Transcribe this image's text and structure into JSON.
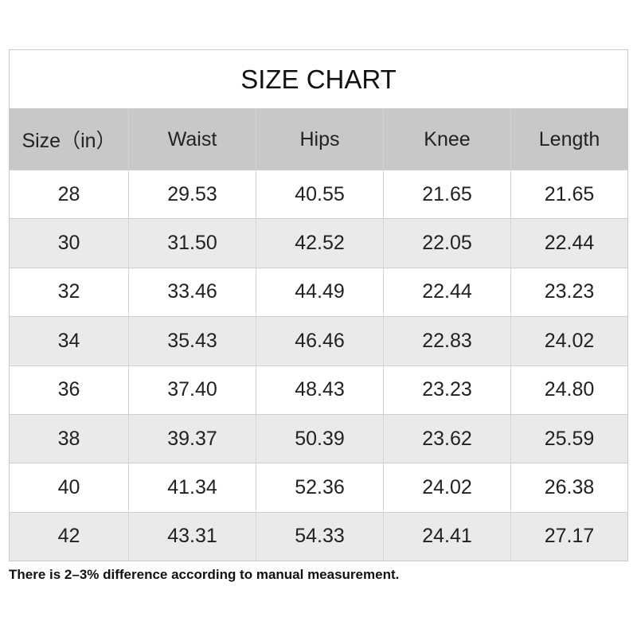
{
  "title": "SIZE CHART",
  "columns": [
    "Size（in）",
    "Waist",
    "Hips",
    "Knee",
    "Length"
  ],
  "rows": [
    [
      "28",
      "29.53",
      "40.55",
      "21.65",
      "21.65"
    ],
    [
      "30",
      "31.50",
      "42.52",
      "22.05",
      "22.44"
    ],
    [
      "32",
      "33.46",
      "44.49",
      "22.44",
      "23.23"
    ],
    [
      "34",
      "35.43",
      "46.46",
      "22.83",
      "24.02"
    ],
    [
      "36",
      "37.40",
      "48.43",
      "23.23",
      "24.80"
    ],
    [
      "38",
      "39.37",
      "50.39",
      "23.62",
      "25.59"
    ],
    [
      "40",
      "41.34",
      "52.36",
      "24.02",
      "26.38"
    ],
    [
      "42",
      "43.31",
      "54.33",
      "24.41",
      "27.17"
    ]
  ],
  "note": "There is 2–3% difference according to manual measurement.",
  "colors": {
    "header_bg": "#c8c8c8",
    "alt_row_bg": "#ebe9ea"
  }
}
